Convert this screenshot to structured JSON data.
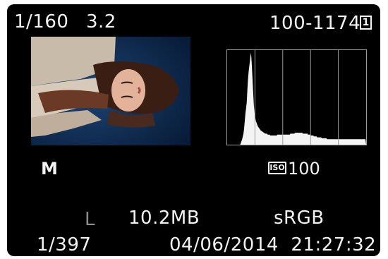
{
  "shooting": {
    "shutter_speed": "1/160",
    "aperture": "3.2",
    "file_number": "100-1174",
    "protect_symbol": "1",
    "mode": "M",
    "iso_symbol": "ISO",
    "iso_value": "100",
    "quality": "L",
    "file_size": "10.2MB",
    "color_space": "sRGB",
    "image_counter": "1/397",
    "date_time": "04/06/2014  21:27:32"
  },
  "icons": {
    "protect": "protect-icon",
    "iso": "iso-icon"
  },
  "colors": {
    "screen_bg": "#000000",
    "text": "#f2f2f2",
    "dim_text": "#8c8c8c",
    "histogram_fill": "#f4f4f4",
    "histogram_grid": "#9c9c9c"
  },
  "histogram": {
    "levels": [
      0,
      0,
      0,
      0,
      0,
      0,
      0,
      0,
      0,
      0,
      0,
      0,
      0,
      0,
      0,
      0,
      0,
      0,
      0,
      0,
      0,
      2,
      4,
      6,
      9,
      12,
      18,
      26,
      34,
      40,
      46,
      60,
      72,
      80,
      86,
      92,
      100,
      96,
      84,
      70,
      55,
      42,
      35,
      30,
      26,
      24,
      22,
      20,
      19,
      18,
      17,
      16,
      15,
      15,
      14,
      14,
      13,
      13,
      12,
      12,
      12,
      12,
      11,
      11,
      11,
      11,
      10,
      10,
      10,
      10,
      10,
      10,
      10,
      10,
      10,
      10,
      10,
      11,
      11,
      11,
      11,
      11,
      11,
      11,
      11,
      11,
      11,
      11,
      11,
      11,
      11,
      11,
      11,
      11,
      11,
      11,
      11,
      12,
      12,
      12,
      12,
      12,
      12,
      12,
      13,
      13,
      13,
      13,
      13,
      13,
      13,
      13,
      13,
      13,
      13,
      13,
      12,
      12,
      12,
      12,
      12,
      12,
      12,
      12,
      11,
      11,
      11,
      11,
      10,
      10,
      10,
      10,
      10,
      9,
      9,
      9,
      9,
      9,
      8,
      8,
      8,
      8,
      8,
      8,
      8,
      7,
      7,
      7,
      7,
      7,
      7,
      7,
      7,
      6,
      6,
      6,
      6,
      6,
      6,
      6,
      6,
      6,
      6,
      6,
      6,
      6,
      6,
      6,
      6,
      6,
      6,
      6,
      6,
      6,
      6,
      6,
      6,
      6,
      6,
      6,
      6,
      6,
      6,
      6,
      6,
      6,
      6,
      6,
      6,
      6,
      6,
      6,
      6,
      6,
      6,
      6,
      6,
      6,
      6,
      6,
      6,
      6,
      6,
      6,
      6,
      6,
      6,
      6,
      6,
      6,
      6,
      6,
      6
    ]
  }
}
